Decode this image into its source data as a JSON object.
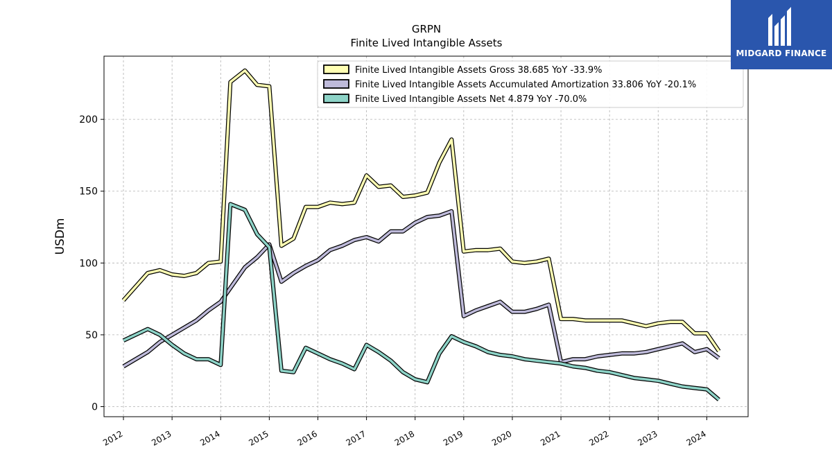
{
  "chart_data": {
    "type": "line",
    "title": "GRPN",
    "subtitle": "Finite Lived Intangible Assets",
    "xlabel": "",
    "ylabel": "USDm",
    "ylim": [
      -7,
      244
    ],
    "xlim": [
      2011.6,
      2024.85
    ],
    "yticks": [
      0,
      50,
      100,
      150,
      200
    ],
    "xticks": [
      2012,
      2013,
      2014,
      2015,
      2016,
      2017,
      2018,
      2019,
      2020,
      2021,
      2022,
      2023,
      2024
    ],
    "grid": true,
    "legend_position": "top-right",
    "series": [
      {
        "name": "Finite Lived Intangible Assets Gross  38.685 YoY -33.9%",
        "color": "#ffffb3",
        "points": [
          [
            2012.0,
            74
          ],
          [
            2012.5,
            93
          ],
          [
            2012.75,
            95
          ],
          [
            2013.0,
            92
          ],
          [
            2013.25,
            91
          ],
          [
            2013.5,
            93
          ],
          [
            2013.75,
            100
          ],
          [
            2014.0,
            101
          ],
          [
            2014.2,
            226
          ],
          [
            2014.5,
            234
          ],
          [
            2014.75,
            224
          ],
          [
            2015.0,
            223
          ],
          [
            2015.25,
            112
          ],
          [
            2015.5,
            117
          ],
          [
            2015.75,
            139
          ],
          [
            2016.0,
            139
          ],
          [
            2016.25,
            142
          ],
          [
            2016.5,
            141
          ],
          [
            2016.75,
            142
          ],
          [
            2017.0,
            161
          ],
          [
            2017.25,
            153
          ],
          [
            2017.5,
            154
          ],
          [
            2017.75,
            146
          ],
          [
            2018.0,
            147
          ],
          [
            2018.25,
            149
          ],
          [
            2018.5,
            170
          ],
          [
            2018.75,
            186
          ],
          [
            2019.0,
            108
          ],
          [
            2019.25,
            109
          ],
          [
            2019.5,
            109
          ],
          [
            2019.75,
            110
          ],
          [
            2020.0,
            101
          ],
          [
            2020.25,
            100
          ],
          [
            2020.5,
            101
          ],
          [
            2020.75,
            103
          ],
          [
            2021.0,
            61
          ],
          [
            2021.25,
            61
          ],
          [
            2021.5,
            60
          ],
          [
            2021.75,
            60
          ],
          [
            2022.0,
            60
          ],
          [
            2022.25,
            60
          ],
          [
            2022.5,
            58
          ],
          [
            2022.75,
            56
          ],
          [
            2023.0,
            58
          ],
          [
            2023.25,
            59
          ],
          [
            2023.5,
            59
          ],
          [
            2023.75,
            51
          ],
          [
            2024.0,
            51
          ],
          [
            2024.25,
            38.685
          ]
        ]
      },
      {
        "name": "Finite Lived Intangible Assets Accumulated Amortization  33.806 YoY -20.1%",
        "color": "#bebada",
        "points": [
          [
            2012.0,
            28
          ],
          [
            2012.5,
            38
          ],
          [
            2012.75,
            45
          ],
          [
            2013.0,
            50
          ],
          [
            2013.25,
            55
          ],
          [
            2013.5,
            60
          ],
          [
            2013.75,
            67
          ],
          [
            2014.0,
            73
          ],
          [
            2014.25,
            85
          ],
          [
            2014.5,
            97
          ],
          [
            2014.75,
            104
          ],
          [
            2015.0,
            113
          ],
          [
            2015.25,
            87
          ],
          [
            2015.5,
            93
          ],
          [
            2015.75,
            98
          ],
          [
            2016.0,
            102
          ],
          [
            2016.25,
            109
          ],
          [
            2016.5,
            112
          ],
          [
            2016.75,
            116
          ],
          [
            2017.0,
            118
          ],
          [
            2017.25,
            115
          ],
          [
            2017.5,
            122
          ],
          [
            2017.75,
            122
          ],
          [
            2018.0,
            128
          ],
          [
            2018.25,
            132
          ],
          [
            2018.5,
            133
          ],
          [
            2018.75,
            136
          ],
          [
            2019.0,
            63
          ],
          [
            2019.25,
            67
          ],
          [
            2019.5,
            70
          ],
          [
            2019.75,
            73
          ],
          [
            2020.0,
            66
          ],
          [
            2020.25,
            66
          ],
          [
            2020.5,
            68
          ],
          [
            2020.75,
            71
          ],
          [
            2021.0,
            31
          ],
          [
            2021.25,
            33
          ],
          [
            2021.5,
            33
          ],
          [
            2021.75,
            35
          ],
          [
            2022.0,
            36
          ],
          [
            2022.25,
            37
          ],
          [
            2022.5,
            37
          ],
          [
            2022.75,
            38
          ],
          [
            2023.0,
            40
          ],
          [
            2023.25,
            42
          ],
          [
            2023.5,
            44
          ],
          [
            2023.75,
            38
          ],
          [
            2024.0,
            40
          ],
          [
            2024.25,
            33.806
          ]
        ]
      },
      {
        "name": "Finite Lived Intangible Assets Net  4.879 YoY -70.0%",
        "color": "#8dd3c7",
        "points": [
          [
            2012.0,
            46
          ],
          [
            2012.5,
            54
          ],
          [
            2012.75,
            50
          ],
          [
            2013.0,
            43
          ],
          [
            2013.25,
            37
          ],
          [
            2013.5,
            33
          ],
          [
            2013.75,
            33
          ],
          [
            2014.0,
            29
          ],
          [
            2014.2,
            141
          ],
          [
            2014.5,
            137
          ],
          [
            2014.75,
            120
          ],
          [
            2015.0,
            111
          ],
          [
            2015.25,
            25
          ],
          [
            2015.5,
            24
          ],
          [
            2015.75,
            41
          ],
          [
            2016.0,
            37
          ],
          [
            2016.25,
            33
          ],
          [
            2016.5,
            30
          ],
          [
            2016.75,
            26
          ],
          [
            2017.0,
            43
          ],
          [
            2017.25,
            38
          ],
          [
            2017.5,
            32
          ],
          [
            2017.75,
            24
          ],
          [
            2018.0,
            19
          ],
          [
            2018.25,
            17
          ],
          [
            2018.5,
            37
          ],
          [
            2018.75,
            49
          ],
          [
            2019.0,
            45
          ],
          [
            2019.25,
            42
          ],
          [
            2019.5,
            38
          ],
          [
            2019.75,
            36
          ],
          [
            2020.0,
            35
          ],
          [
            2020.25,
            33
          ],
          [
            2020.5,
            32
          ],
          [
            2020.75,
            31
          ],
          [
            2021.0,
            30
          ],
          [
            2021.25,
            28
          ],
          [
            2021.5,
            27
          ],
          [
            2021.75,
            25
          ],
          [
            2022.0,
            24
          ],
          [
            2022.25,
            22
          ],
          [
            2022.5,
            20
          ],
          [
            2022.75,
            19
          ],
          [
            2023.0,
            18
          ],
          [
            2023.25,
            16
          ],
          [
            2023.5,
            14
          ],
          [
            2023.75,
            13
          ],
          [
            2024.0,
            12
          ],
          [
            2024.25,
            4.879
          ]
        ]
      }
    ]
  },
  "logo": {
    "text": "MIDGARD FINANCE",
    "background": "#2a56ad"
  }
}
